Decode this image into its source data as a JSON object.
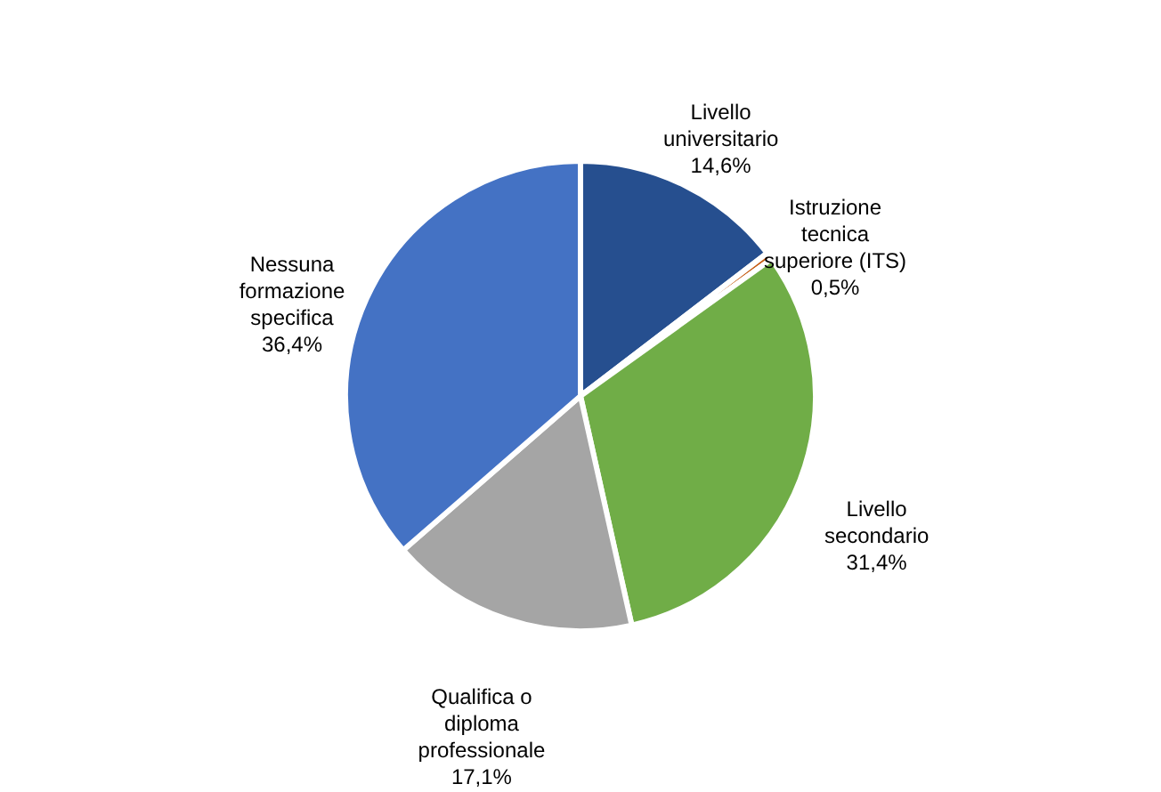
{
  "chart_data": {
    "type": "pie",
    "categories": [
      "Livello universitario",
      "Istruzione tecnica superiore (ITS)",
      "Livello secondario",
      "Qualifica o diploma professionale",
      "Nessuna formazione specifica"
    ],
    "values": [
      14.6,
      0.5,
      31.4,
      17.1,
      36.4
    ],
    "value_labels": [
      "14,6%",
      "0,5%",
      "31,4%",
      "17,1%",
      "36,4%"
    ],
    "colors": [
      "#264f8f",
      "#c55a11",
      "#70ad47",
      "#a5a5a5",
      "#4472c4"
    ],
    "legend": false
  }
}
